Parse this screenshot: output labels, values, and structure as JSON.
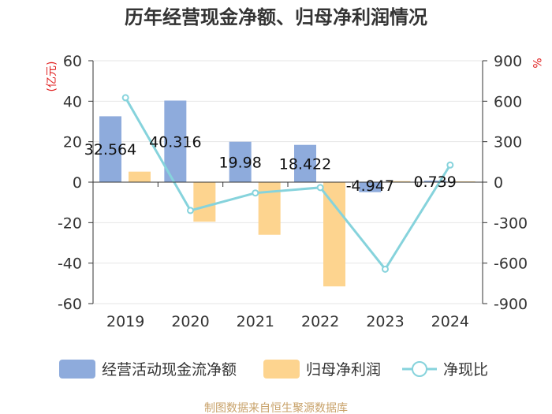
{
  "chart_data": {
    "type": "bar",
    "title": "历年经营现金净额、归母净利润情况",
    "categories": [
      "2019",
      "2020",
      "2021",
      "2022",
      "2023",
      "2024"
    ],
    "left_axis_unit": "(亿元)",
    "right_axis_unit": "%",
    "left_ylim": [
      -60,
      60
    ],
    "left_ticks": [
      "60",
      "40",
      "20",
      "0",
      "-20",
      "-40",
      "-60"
    ],
    "right_ylim": [
      -900,
      900
    ],
    "right_ticks": [
      "900",
      "600",
      "300",
      "0",
      "-300",
      "-600",
      "-900"
    ],
    "series": [
      {
        "name": "经营活动现金流净额",
        "kind": "bar",
        "axis": "left",
        "color": "#8eabdc",
        "values": [
          32.564,
          40.316,
          19.98,
          18.422,
          -4.947,
          0.739
        ],
        "labels": [
          "32.564",
          "40.316",
          "19.98",
          "18.422",
          "-4.947",
          "0.739"
        ]
      },
      {
        "name": "归母净利润",
        "kind": "bar",
        "axis": "left",
        "color": "#fdd48f",
        "values": [
          5.2,
          -19.5,
          -26.0,
          -51.5,
          0.5,
          0.4
        ]
      },
      {
        "name": "净现比",
        "kind": "line",
        "axis": "right",
        "color": "#86d3dc",
        "values": [
          626,
          -210,
          -80,
          -40,
          -645,
          127
        ]
      }
    ],
    "legend_position": "bottom",
    "grid": true,
    "source": "制图数据来自恒生聚源数据库"
  }
}
